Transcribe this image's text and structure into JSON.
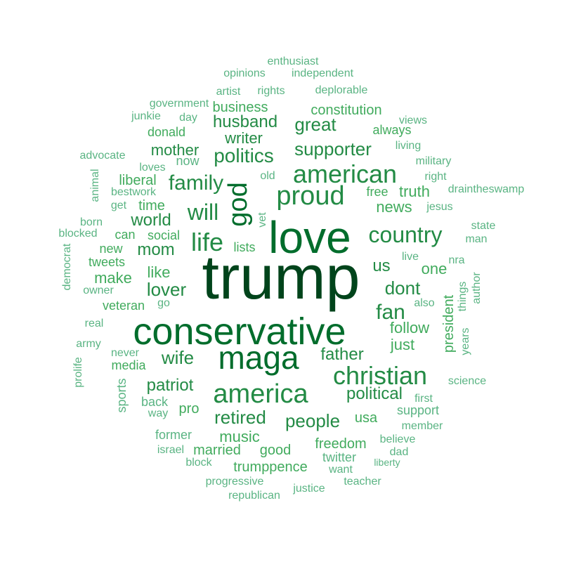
{
  "cloud": {
    "colors": [
      "#00441b",
      "#006d2c",
      "#238b45",
      "#41ab5d",
      "#5ab483"
    ],
    "words": [
      {
        "text": "trump",
        "tier": 0
      },
      {
        "text": "love",
        "tier": 1
      },
      {
        "text": "conservative",
        "tier": 1
      },
      {
        "text": "maga",
        "tier": 1
      },
      {
        "text": "god",
        "tier": 1
      },
      {
        "text": "american",
        "tier": 2
      },
      {
        "text": "proud",
        "tier": 2
      },
      {
        "text": "america",
        "tier": 2
      },
      {
        "text": "christian",
        "tier": 2
      },
      {
        "text": "country",
        "tier": 2
      },
      {
        "text": "will",
        "tier": 2
      },
      {
        "text": "life",
        "tier": 2
      },
      {
        "text": "fan",
        "tier": 2
      },
      {
        "text": "family",
        "tier": 2
      },
      {
        "text": "politics",
        "tier": 2
      },
      {
        "text": "supporter",
        "tier": 2
      },
      {
        "text": "great",
        "tier": 2
      },
      {
        "text": "husband",
        "tier": 2
      },
      {
        "text": "writer",
        "tier": 2
      },
      {
        "text": "mother",
        "tier": 2
      },
      {
        "text": "world",
        "tier": 2
      },
      {
        "text": "mom",
        "tier": 2
      },
      {
        "text": "lover",
        "tier": 2
      },
      {
        "text": "like",
        "tier": 3
      },
      {
        "text": "make",
        "tier": 3
      },
      {
        "text": "wife",
        "tier": 2
      },
      {
        "text": "patriot",
        "tier": 2
      },
      {
        "text": "retired",
        "tier": 2
      },
      {
        "text": "people",
        "tier": 2
      },
      {
        "text": "father",
        "tier": 2
      },
      {
        "text": "political",
        "tier": 2
      },
      {
        "text": "dont",
        "tier": 2
      },
      {
        "text": "us",
        "tier": 2
      },
      {
        "text": "one",
        "tier": 3
      },
      {
        "text": "news",
        "tier": 3
      },
      {
        "text": "truth",
        "tier": 3
      },
      {
        "text": "just",
        "tier": 3
      },
      {
        "text": "follow",
        "tier": 3
      },
      {
        "text": "president",
        "tier": 3
      },
      {
        "text": "music",
        "tier": 3
      },
      {
        "text": "good",
        "tier": 3
      },
      {
        "text": "freedom",
        "tier": 3
      },
      {
        "text": "trumppence",
        "tier": 3
      },
      {
        "text": "married",
        "tier": 3
      },
      {
        "text": "pro",
        "tier": 3
      },
      {
        "text": "constitution",
        "tier": 3
      },
      {
        "text": "business",
        "tier": 3
      },
      {
        "text": "donald",
        "tier": 3
      },
      {
        "text": "now",
        "tier": 4
      },
      {
        "text": "liberal",
        "tier": 3
      },
      {
        "text": "time",
        "tier": 3
      },
      {
        "text": "can",
        "tier": 3
      },
      {
        "text": "social",
        "tier": 3
      },
      {
        "text": "lists",
        "tier": 3
      },
      {
        "text": "new",
        "tier": 3
      },
      {
        "text": "tweets",
        "tier": 3
      },
      {
        "text": "owner",
        "tier": 4
      },
      {
        "text": "veteran",
        "tier": 3
      },
      {
        "text": "go",
        "tier": 4
      },
      {
        "text": "media",
        "tier": 3
      },
      {
        "text": "never",
        "tier": 4
      },
      {
        "text": "always",
        "tier": 3
      },
      {
        "text": "living",
        "tier": 4
      },
      {
        "text": "military",
        "tier": 4
      },
      {
        "text": "right",
        "tier": 4
      },
      {
        "text": "free",
        "tier": 3
      },
      {
        "text": "jesus",
        "tier": 4
      },
      {
        "text": "usa",
        "tier": 3
      },
      {
        "text": "support",
        "tier": 4
      },
      {
        "text": "member",
        "tier": 4
      },
      {
        "text": "believe",
        "tier": 4
      },
      {
        "text": "dad",
        "tier": 4
      },
      {
        "text": "liberty",
        "tier": 4
      },
      {
        "text": "twitter",
        "tier": 4
      },
      {
        "text": "want",
        "tier": 4
      },
      {
        "text": "teacher",
        "tier": 4
      },
      {
        "text": "justice",
        "tier": 4
      },
      {
        "text": "republican",
        "tier": 4
      },
      {
        "text": "progressive",
        "tier": 4
      },
      {
        "text": "block",
        "tier": 4
      },
      {
        "text": "israel",
        "tier": 4
      },
      {
        "text": "former",
        "tier": 4
      },
      {
        "text": "way",
        "tier": 4
      },
      {
        "text": "back",
        "tier": 4
      },
      {
        "text": "sports",
        "tier": 4
      },
      {
        "text": "prolife",
        "tier": 4
      },
      {
        "text": "army",
        "tier": 4
      },
      {
        "text": "real",
        "tier": 4
      },
      {
        "text": "democrat",
        "tier": 4
      },
      {
        "text": "blocked",
        "tier": 4
      },
      {
        "text": "born",
        "tier": 4
      },
      {
        "text": "get",
        "tier": 4
      },
      {
        "text": "bestwork",
        "tier": 4
      },
      {
        "text": "animal",
        "tier": 4
      },
      {
        "text": "loves",
        "tier": 4
      },
      {
        "text": "advocate",
        "tier": 4
      },
      {
        "text": "junkie",
        "tier": 4
      },
      {
        "text": "day",
        "tier": 4
      },
      {
        "text": "government",
        "tier": 4
      },
      {
        "text": "artist",
        "tier": 4
      },
      {
        "text": "rights",
        "tier": 4
      },
      {
        "text": "deplorable",
        "tier": 4
      },
      {
        "text": "opinions",
        "tier": 4
      },
      {
        "text": "independent",
        "tier": 4
      },
      {
        "text": "enthusiast",
        "tier": 4
      },
      {
        "text": "views",
        "tier": 4
      },
      {
        "text": "draintheswamp",
        "tier": 4
      },
      {
        "text": "state",
        "tier": 4
      },
      {
        "text": "man",
        "tier": 4
      },
      {
        "text": "nra",
        "tier": 4
      },
      {
        "text": "author",
        "tier": 4
      },
      {
        "text": "things",
        "tier": 4
      },
      {
        "text": "years",
        "tier": 4
      },
      {
        "text": "science",
        "tier": 4
      },
      {
        "text": "first",
        "tier": 4
      },
      {
        "text": "live",
        "tier": 4
      },
      {
        "text": "also",
        "tier": 4
      },
      {
        "text": "old",
        "tier": 4
      },
      {
        "text": "vet",
        "tier": 4
      }
    ]
  }
}
